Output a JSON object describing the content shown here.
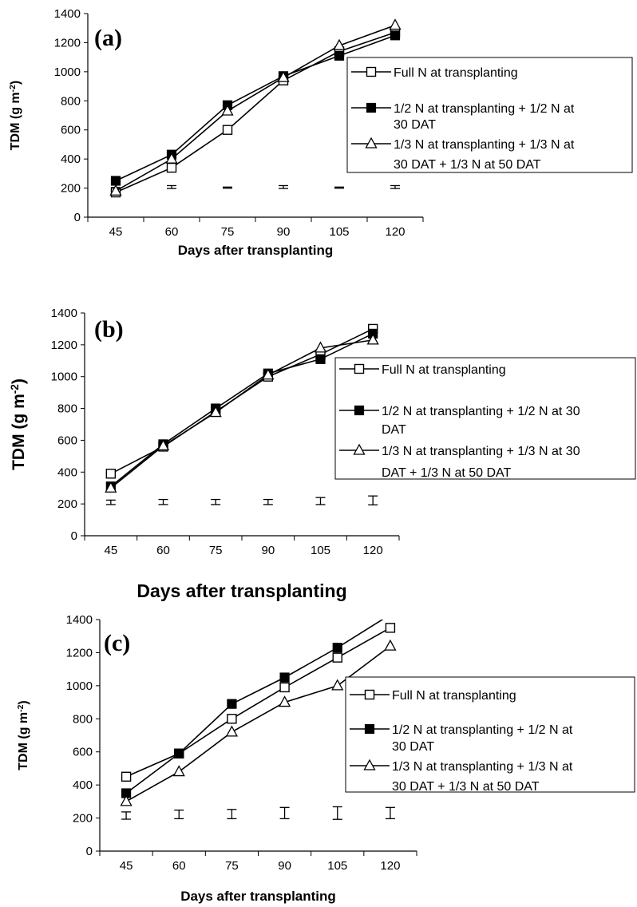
{
  "figure_panels": [
    "(a)",
    "(b)",
    "(c)"
  ],
  "chart_data": [
    {
      "type": "line",
      "panel_label": "(a)",
      "xlabel": "Days after transplanting",
      "ylabel": "TDM (g m⁻²)",
      "categories": [
        "45",
        "60",
        "75",
        "90",
        "105",
        "120"
      ],
      "ylim": [
        0,
        1400
      ],
      "yticks": [
        "0",
        "200",
        "400",
        "600",
        "800",
        "1000",
        "1200",
        "1400"
      ],
      "series": [
        {
          "name": "Full N at transplanting",
          "marker": "open-square",
          "values": [
            170,
            340,
            600,
            940,
            1140,
            1270
          ]
        },
        {
          "name": "1/2 N at transplanting + 1/2 N at 30 DAT",
          "marker": "filled-square",
          "values": [
            250,
            430,
            770,
            970,
            1110,
            1250
          ]
        },
        {
          "name": "1/3 N at transplanting + 1/3 N at 30 DAT + 1/3 N at 50 DAT",
          "marker": "open-triangle",
          "values": [
            180,
            400,
            730,
            960,
            1180,
            1320
          ]
        }
      ],
      "error_bars": [
        {
          "center": 200,
          "half": 4
        },
        {
          "center": 207,
          "half": 10
        },
        {
          "center": 203,
          "half": 4
        },
        {
          "center": 207,
          "half": 10
        },
        {
          "center": 203,
          "half": 4
        },
        {
          "center": 207,
          "half": 10
        }
      ],
      "legend_lines": [
        "Full N at transplanting",
        "1/2 N at transplanting + 1/2 N at",
        "30 DAT",
        "1/3 N at transplanting + 1/3 N at",
        "30 DAT + 1/3 N at 50 DAT"
      ],
      "legend_position": "right"
    },
    {
      "type": "line",
      "panel_label": "(b)",
      "xlabel": "Days after transplanting",
      "ylabel": "TDM (g m⁻²)",
      "categories": [
        "45",
        "60",
        "75",
        "90",
        "105",
        "120"
      ],
      "ylim": [
        0,
        1400
      ],
      "yticks": [
        "0",
        "200",
        "400",
        "600",
        "800",
        "1000",
        "1200",
        "1400"
      ],
      "series": [
        {
          "name": "Full N at transplanting",
          "marker": "open-square",
          "values": [
            390,
            560,
            780,
            1000,
            1140,
            1300
          ]
        },
        {
          "name": "1/2 N at transplanting + 1/2 N at 30 DAT",
          "marker": "filled-square",
          "values": [
            310,
            575,
            800,
            1020,
            1110,
            1270
          ]
        },
        {
          "name": "1/3 N at transplanting + 1/3 N at 30 DAT + 1/3 N at 50 DAT",
          "marker": "open-triangle",
          "values": [
            300,
            565,
            775,
            1010,
            1180,
            1230
          ]
        }
      ],
      "error_bars": [
        {
          "center": 210,
          "half": 14
        },
        {
          "center": 212,
          "half": 16
        },
        {
          "center": 212,
          "half": 16
        },
        {
          "center": 212,
          "half": 16
        },
        {
          "center": 218,
          "half": 22
        },
        {
          "center": 222,
          "half": 28
        }
      ],
      "legend_lines": [
        "Full N at transplanting",
        "1/2 N at transplanting + 1/2 N at 30",
        "DAT",
        "1/3 N at transplanting + 1/3 N at 30",
        "DAT + 1/3 N at 50 DAT"
      ],
      "legend_position": "right"
    },
    {
      "type": "line",
      "panel_label": "(c)",
      "xlabel": "Days after transplanting",
      "ylabel": "TDM (g m⁻²)",
      "categories": [
        "45",
        "60",
        "75",
        "90",
        "105",
        "120"
      ],
      "ylim": [
        0,
        1400
      ],
      "yticks": [
        "0",
        "200",
        "400",
        "600",
        "800",
        "1000",
        "1200",
        "1400"
      ],
      "series": [
        {
          "name": "Full N at transplanting",
          "marker": "open-square",
          "values": [
            450,
            590,
            800,
            990,
            1170,
            1350
          ]
        },
        {
          "name": "1/2 N at transplanting + 1/2 N at 30 DAT",
          "marker": "filled-square",
          "values": [
            350,
            590,
            890,
            1050,
            1230,
            1430
          ]
        },
        {
          "name": "1/3 N at transplanting + 1/3 N at 30 DAT + 1/3 N at 50 DAT",
          "marker": "open-triangle",
          "values": [
            300,
            480,
            720,
            900,
            1000,
            1240
          ]
        }
      ],
      "error_bars": [
        {
          "center": 215,
          "half": 22
        },
        {
          "center": 222,
          "half": 26
        },
        {
          "center": 224,
          "half": 28
        },
        {
          "center": 230,
          "half": 34
        },
        {
          "center": 230,
          "half": 38
        },
        {
          "center": 230,
          "half": 34
        }
      ],
      "legend_lines": [
        "Full N at transplanting",
        "1/2 N at transplanting + 1/2 N at",
        "30 DAT",
        "1/3 N at transplanting + 1/3 N at",
        "30 DAT + 1/3 N at 50 DAT"
      ],
      "legend_position": "right"
    }
  ]
}
